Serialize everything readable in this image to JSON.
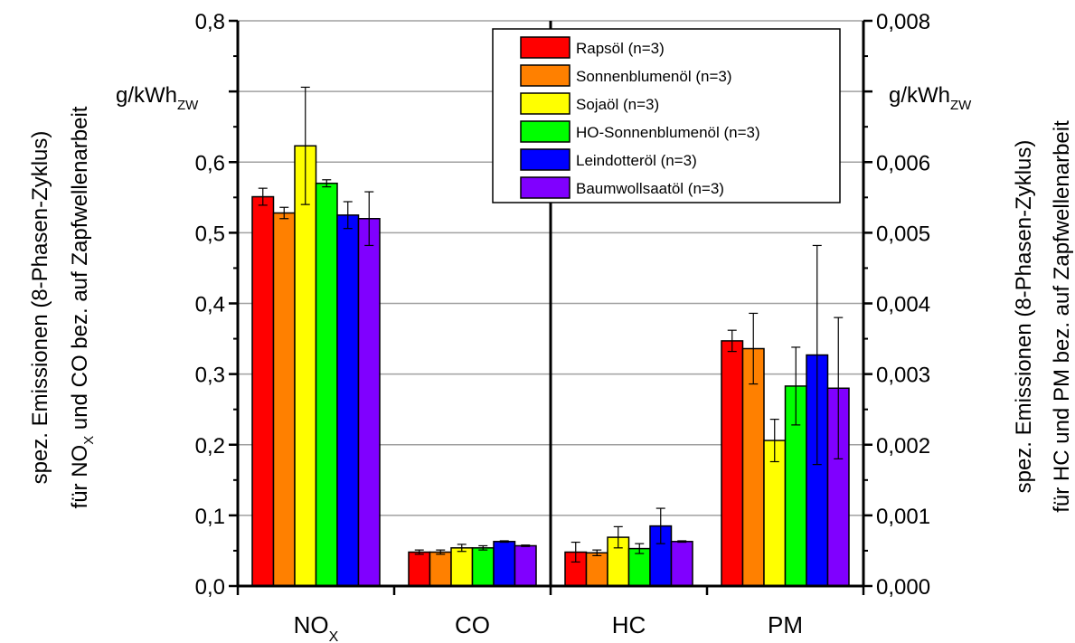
{
  "chart_data": {
    "type": "bar",
    "categories": [
      {
        "name": "NO",
        "sub": "X",
        "axis": "left"
      },
      {
        "name": "CO",
        "sub": "",
        "axis": "left"
      },
      {
        "name": "HC",
        "sub": "",
        "axis": "right"
      },
      {
        "name": "PM",
        "sub": "",
        "axis": "right"
      }
    ],
    "series": [
      {
        "name": "Rapsöl (n=3)",
        "color": "#ff0000",
        "values": [
          0.551,
          0.048,
          0.00048,
          0.00347
        ],
        "errors": [
          0.012,
          0.003,
          0.00014,
          0.00015
        ]
      },
      {
        "name": "Sonnenblumenöl (n=3)",
        "color": "#ff8000",
        "values": [
          0.528,
          0.048,
          0.00047,
          0.00336
        ],
        "errors": [
          0.008,
          0.003,
          4e-05,
          0.0005
        ]
      },
      {
        "name": "Sojaöl (n=3)",
        "color": "#ffff00",
        "values": [
          0.623,
          0.054,
          0.00069,
          0.00206
        ],
        "errors": [
          0.083,
          0.005,
          0.00015,
          0.0003
        ]
      },
      {
        "name": "HO-Sonnenblumenöl (n=3)",
        "color": "#00ff00",
        "values": [
          0.57,
          0.054,
          0.00053,
          0.00283
        ],
        "errors": [
          0.005,
          0.003,
          7e-05,
          0.00055
        ]
      },
      {
        "name": "Leindotteröl (n=3)",
        "color": "#0000ff",
        "values": [
          0.525,
          0.063,
          0.00085,
          0.00327
        ],
        "errors": [
          0.019,
          0.001,
          0.00025,
          0.00155
        ]
      },
      {
        "name": "Baumwollsaatöl (n=3)",
        "color": "#8000ff",
        "values": [
          0.52,
          0.057,
          0.00063,
          0.0028
        ],
        "errors": [
          0.038,
          0.001,
          1e-05,
          0.001
        ]
      }
    ],
    "left_axis": {
      "ylim": [
        0,
        0.8
      ],
      "tick_labels": [
        "0,0",
        "0,1",
        "0,2",
        "0,3",
        "0,4",
        "0,5",
        "0,6",
        "",
        "0,8"
      ],
      "unit": "g/kWh",
      "unit_sub": "ZW",
      "label_line1": "spez. Emissionen (8-Phasen-Zyklus)",
      "label_line2_pre": "für NO",
      "label_line2_sub": "X",
      "label_line2_post": " und CO bez. auf Zapfwellenarbeit"
    },
    "right_axis": {
      "ylim": [
        0,
        0.008
      ],
      "tick_labels": [
        "0,000",
        "0,001",
        "0,002",
        "0,003",
        "0,004",
        "0,005",
        "0,006",
        "",
        "0,008"
      ],
      "unit": "g/kWh",
      "unit_sub": "ZW",
      "label_line1": "spez. Emissionen (8-Phasen-Zyklus)",
      "label_line2": "für HC und PM bez. auf Zapfwellenarbeit"
    },
    "grid": true,
    "divider_between": [
      "CO",
      "HC"
    ],
    "legend_position": "top-right"
  }
}
